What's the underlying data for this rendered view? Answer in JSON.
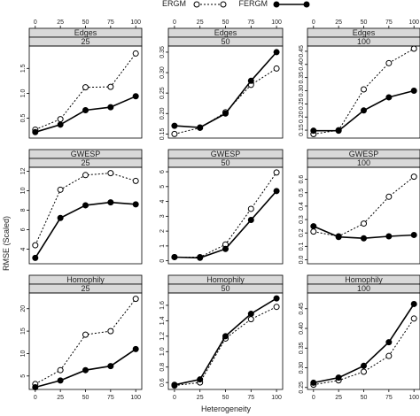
{
  "legend": {
    "items": [
      {
        "label": "ERGM",
        "style": "dotted",
        "marker": "open-circle"
      },
      {
        "label": "FERGM",
        "style": "solid",
        "marker": "filled-circle"
      }
    ],
    "placement": "top"
  },
  "axes": {
    "xlabel": "Heterogeneity",
    "ylabel": "RMSE (Scaled)",
    "top_ticks": [
      "0",
      "25",
      "50",
      "75",
      "100"
    ]
  },
  "colors": {
    "line": "#000000",
    "strip": "#d9d9d9",
    "frame": "#000000"
  },
  "chart_data": [
    {
      "type": "line",
      "stat": "Edges",
      "group": "25",
      "x": [
        0,
        25,
        50,
        75,
        100
      ],
      "ylim": [
        0.1,
        1.95
      ],
      "yticks": [
        "0.5",
        "1.0",
        "1.5"
      ],
      "ytick_values": [
        0.5,
        1.0,
        1.5
      ],
      "series": [
        {
          "name": "ERGM",
          "values": [
            0.27,
            0.48,
            1.12,
            1.13,
            1.8
          ]
        },
        {
          "name": "FERGM",
          "values": [
            0.22,
            0.37,
            0.66,
            0.72,
            0.94
          ]
        }
      ]
    },
    {
      "type": "line",
      "stat": "Edges",
      "group": "50",
      "x": [
        0,
        25,
        50,
        75,
        100
      ],
      "ylim": [
        0.14,
        0.365
      ],
      "yticks": [
        "0.15",
        "0.20",
        "0.25",
        "0.30",
        "0.35"
      ],
      "ytick_values": [
        0.15,
        0.2,
        0.25,
        0.3,
        0.35
      ],
      "series": [
        {
          "name": "ERGM",
          "values": [
            0.15,
            0.165,
            0.203,
            0.27,
            0.31
          ]
        },
        {
          "name": "FERGM",
          "values": [
            0.17,
            0.166,
            0.2,
            0.28,
            0.35
          ]
        }
      ]
    },
    {
      "type": "line",
      "stat": "Edges",
      "group": "100",
      "x": [
        0,
        25,
        50,
        75,
        100
      ],
      "ylim": [
        0.12,
        0.47
      ],
      "yticks": [
        "0.15",
        "0.20",
        "0.25",
        "0.30",
        "0.35",
        "0.40",
        "0.45"
      ],
      "ytick_values": [
        0.15,
        0.2,
        0.25,
        0.3,
        0.35,
        0.4,
        0.45
      ],
      "series": [
        {
          "name": "ERGM",
          "values": [
            0.135,
            0.15,
            0.305,
            0.405,
            0.46
          ]
        },
        {
          "name": "FERGM",
          "values": [
            0.148,
            0.148,
            0.225,
            0.275,
            0.3
          ]
        }
      ]
    },
    {
      "type": "line",
      "stat": "GWESP",
      "group": "25",
      "x": [
        0,
        25,
        50,
        75,
        100
      ],
      "ylim": [
        2.5,
        12.4
      ],
      "yticks": [
        "4",
        "6",
        "8",
        "10",
        "12"
      ],
      "ytick_values": [
        4,
        6,
        8,
        10,
        12
      ],
      "series": [
        {
          "name": "ERGM",
          "values": [
            4.4,
            10.1,
            11.6,
            11.8,
            11.0
          ]
        },
        {
          "name": "FERGM",
          "values": [
            3.1,
            7.2,
            8.5,
            8.8,
            8.6
          ]
        }
      ]
    },
    {
      "type": "line",
      "stat": "GWESP",
      "group": "50",
      "x": [
        0,
        25,
        50,
        75,
        100
      ],
      "ylim": [
        -0.2,
        6.3
      ],
      "yticks": [
        "0",
        "1",
        "2",
        "3",
        "4",
        "5",
        "6"
      ],
      "ytick_values": [
        0,
        1,
        2,
        3,
        4,
        5,
        6
      ],
      "series": [
        {
          "name": "ERGM",
          "values": [
            0.25,
            0.25,
            1.1,
            3.5,
            5.95
          ]
        },
        {
          "name": "FERGM",
          "values": [
            0.25,
            0.2,
            0.8,
            2.75,
            4.7
          ]
        }
      ]
    },
    {
      "type": "line",
      "stat": "GWESP",
      "group": "100",
      "x": [
        0,
        25,
        50,
        75,
        100
      ],
      "ylim": [
        -0.03,
        0.69
      ],
      "yticks": [
        "0.0",
        "0.1",
        "0.2",
        "0.3",
        "0.4",
        "0.5",
        "0.6"
      ],
      "ytick_values": [
        0,
        0.1,
        0.2,
        0.3,
        0.4,
        0.5,
        0.6
      ],
      "series": [
        {
          "name": "ERGM",
          "values": [
            0.21,
            0.175,
            0.27,
            0.47,
            0.62
          ]
        },
        {
          "name": "FERGM",
          "values": [
            0.25,
            0.17,
            0.16,
            0.175,
            0.185
          ]
        }
      ]
    },
    {
      "type": "line",
      "stat": "Homophily",
      "group": "25",
      "x": [
        0,
        25,
        50,
        75,
        100
      ],
      "ylim": [
        2.0,
        23.5
      ],
      "yticks": [
        "5",
        "10",
        "15",
        "20"
      ],
      "ytick_values": [
        5,
        10,
        15,
        20
      ],
      "series": [
        {
          "name": "ERGM",
          "values": [
            3.2,
            6.3,
            14.2,
            15.0,
            22.2
          ]
        },
        {
          "name": "FERGM",
          "values": [
            2.5,
            4.0,
            6.3,
            7.2,
            11.0
          ]
        }
      ]
    },
    {
      "type": "line",
      "stat": "Homophily",
      "group": "50",
      "x": [
        0,
        25,
        50,
        75,
        100
      ],
      "ylim": [
        0.51,
        1.76
      ],
      "yticks": [
        "0.6",
        "0.8",
        "1.0",
        "1.2",
        "1.4",
        "1.6"
      ],
      "ytick_values": [
        0.6,
        0.8,
        1.0,
        1.2,
        1.4,
        1.6
      ],
      "series": [
        {
          "name": "ERGM",
          "values": [
            0.56,
            0.6,
            1.17,
            1.42,
            1.58
          ]
        },
        {
          "name": "FERGM",
          "values": [
            0.57,
            0.64,
            1.2,
            1.49,
            1.69
          ]
        }
      ]
    },
    {
      "type": "line",
      "stat": "Homophily",
      "group": "100",
      "x": [
        0,
        25,
        50,
        75,
        100
      ],
      "ylim": [
        0.245,
        0.49
      ],
      "yticks": [
        "0.25",
        "0.30",
        "0.35",
        "0.40",
        "0.45"
      ],
      "ytick_values": [
        0.25,
        0.3,
        0.35,
        0.4,
        0.45
      ],
      "series": [
        {
          "name": "ERGM",
          "values": [
            0.257,
            0.268,
            0.29,
            0.33,
            0.425
          ]
        },
        {
          "name": "FERGM",
          "values": [
            0.262,
            0.275,
            0.305,
            0.365,
            0.462
          ]
        }
      ]
    }
  ]
}
